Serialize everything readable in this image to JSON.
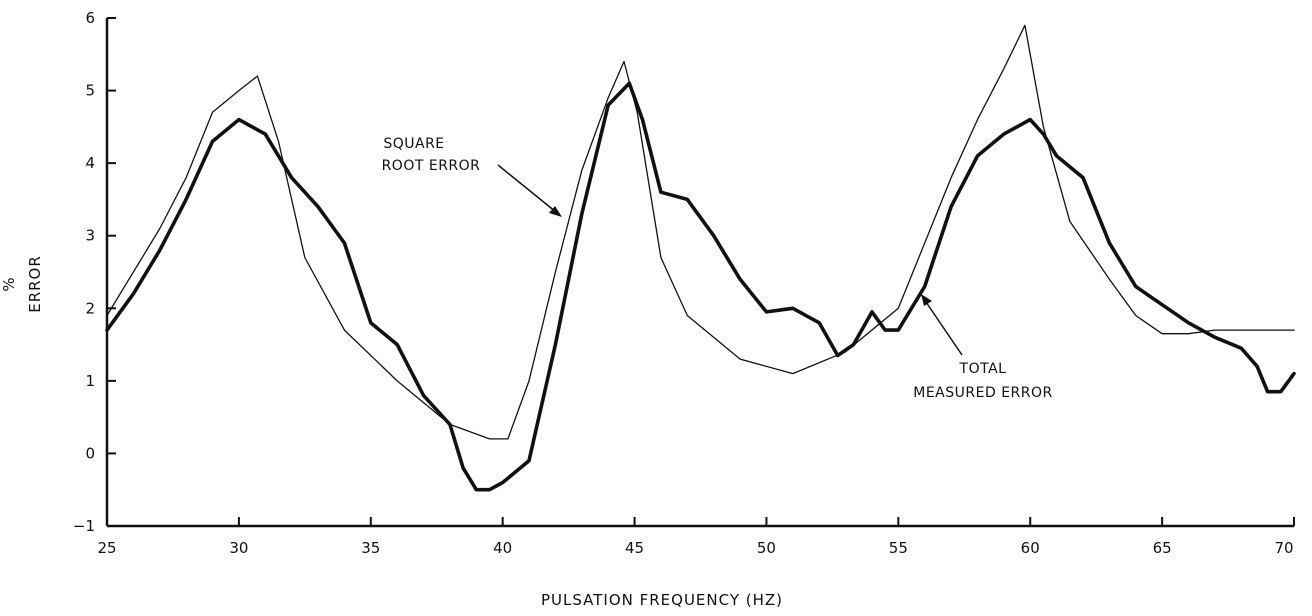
{
  "chart_data": {
    "type": "line",
    "title": "",
    "xlabel": "PULSATION FREQUENCY (HZ)",
    "ylabel_top": "%",
    "ylabel_bottom": "ERROR",
    "xlim": [
      25,
      70
    ],
    "ylim": [
      -1,
      6
    ],
    "xticks": [
      {
        "value": 25,
        "label": "25"
      },
      {
        "value": 30,
        "label": "30"
      },
      {
        "value": 35,
        "label": "35"
      },
      {
        "value": 40,
        "label": "40"
      },
      {
        "value": 45,
        "label": "45"
      },
      {
        "value": 50,
        "label": "50"
      },
      {
        "value": 55,
        "label": "55"
      },
      {
        "value": 60,
        "label": "60"
      },
      {
        "value": 65,
        "label": "65"
      },
      {
        "value": 70,
        "label": "70"
      }
    ],
    "yticks": [
      {
        "value": -1,
        "label": "−1"
      },
      {
        "value": 0,
        "label": "0"
      },
      {
        "value": 1,
        "label": "1"
      },
      {
        "value": 2,
        "label": "2"
      },
      {
        "value": 3,
        "label": "3"
      },
      {
        "value": 4,
        "label": "4"
      },
      {
        "value": 5,
        "label": "5"
      },
      {
        "value": 6,
        "label": "6"
      }
    ],
    "grid": false,
    "series": [
      {
        "name": "SQUARE ROOT ERROR",
        "style": "thin",
        "x": [
          25,
          26,
          27,
          28,
          29,
          30,
          30.7,
          31.5,
          32.5,
          34,
          36,
          38,
          39.5,
          40.2,
          41,
          42,
          43,
          44,
          44.6,
          45.1,
          46,
          47,
          49,
          51,
          53,
          55,
          56,
          57,
          58,
          59,
          59.8,
          60.5,
          61.5,
          63,
          64,
          65,
          66,
          67,
          68,
          70
        ],
        "y": [
          1.9,
          2.5,
          3.1,
          3.8,
          4.7,
          5.0,
          5.2,
          4.3,
          2.7,
          1.7,
          1.0,
          0.4,
          0.2,
          0.2,
          1.0,
          2.5,
          3.9,
          4.9,
          5.4,
          4.7,
          2.7,
          1.9,
          1.3,
          1.1,
          1.4,
          2.0,
          2.9,
          3.8,
          4.6,
          5.3,
          5.9,
          4.5,
          3.2,
          2.4,
          1.9,
          1.65,
          1.65,
          1.7,
          1.7,
          1.7
        ]
      },
      {
        "name": "TOTAL MEASURED ERROR",
        "style": "thick",
        "x": [
          25,
          26,
          27,
          28,
          29,
          30,
          31,
          32,
          33,
          34,
          35,
          36,
          37,
          38,
          38.5,
          39,
          39.5,
          40,
          41,
          42,
          43,
          44,
          44.8,
          45.3,
          46,
          47,
          48,
          49,
          50,
          51,
          52,
          52.7,
          53.3,
          54,
          54.5,
          55,
          56,
          57,
          58,
          59,
          60,
          60.5,
          61,
          62,
          63,
          64,
          65,
          66,
          67,
          68,
          68.6,
          69,
          69.5,
          70
        ],
        "y": [
          1.7,
          2.2,
          2.8,
          3.5,
          4.3,
          4.6,
          4.4,
          3.8,
          3.4,
          2.9,
          1.8,
          1.5,
          0.8,
          0.4,
          -0.2,
          -0.5,
          -0.5,
          -0.4,
          -0.1,
          1.5,
          3.3,
          4.8,
          5.1,
          4.6,
          3.6,
          3.5,
          3.0,
          2.4,
          1.95,
          2.0,
          1.8,
          1.35,
          1.5,
          1.95,
          1.7,
          1.7,
          2.3,
          3.4,
          4.1,
          4.4,
          4.6,
          4.4,
          4.1,
          3.8,
          2.9,
          2.3,
          2.05,
          1.8,
          1.6,
          1.45,
          1.2,
          0.85,
          0.85,
          1.1
        ]
      }
    ],
    "annotations": [
      {
        "lines": [
          "SQUARE",
          "ROOT ERROR"
        ],
        "points_to_series": "SQUARE ROOT ERROR"
      },
      {
        "lines": [
          "TOTAL",
          "MEASURED ERROR"
        ],
        "points_to_series": "TOTAL MEASURED ERROR"
      }
    ]
  }
}
